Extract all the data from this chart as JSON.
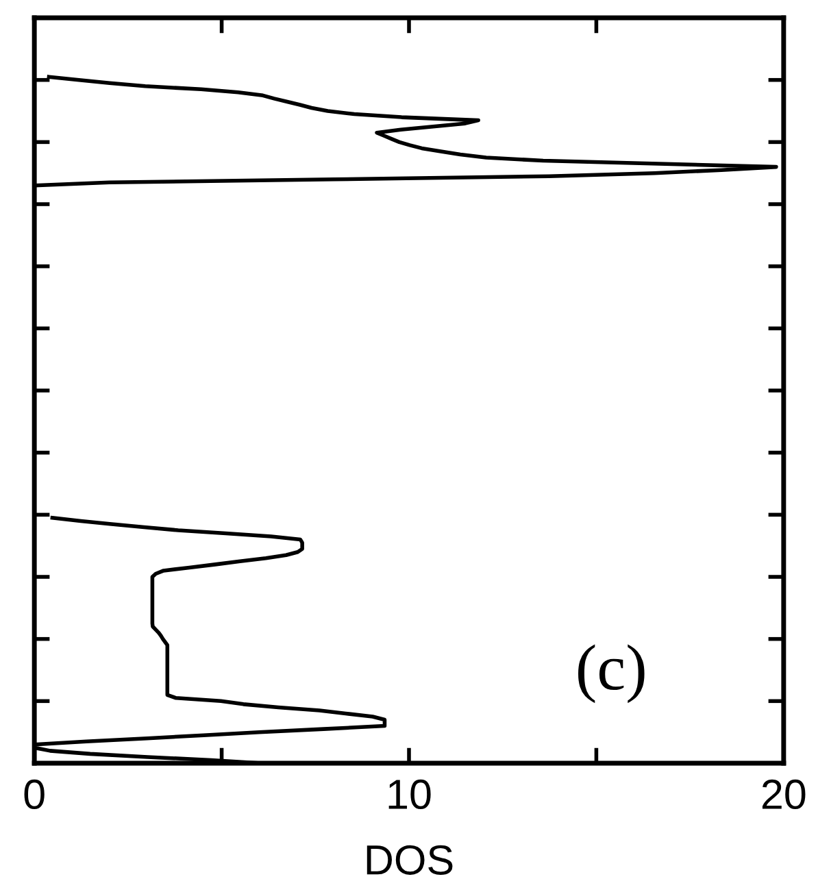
{
  "chart_data": {
    "type": "line",
    "orientation": "horizontal",
    "xlabel": "DOS",
    "categories": [
      null,
      null,
      null,
      null,
      null,
      null,
      null,
      null,
      null,
      null,
      null,
      null,
      null,
      null,
      null,
      null,
      null,
      null,
      null,
      null,
      null,
      null,
      null,
      null,
      null,
      null,
      null,
      null,
      null,
      null,
      null,
      null,
      null,
      null,
      null,
      null,
      null,
      null,
      null,
      null,
      null,
      null,
      null,
      null,
      null,
      null,
      null,
      null,
      null,
      null,
      null,
      null,
      null,
      null,
      null,
      null,
      null,
      null,
      null,
      null,
      null,
      null,
      null,
      null,
      null,
      null,
      null,
      null,
      null,
      null,
      null,
      null,
      null,
      null,
      null,
      null,
      null,
      null,
      null,
      null,
      null,
      null,
      null,
      null,
      null,
      null,
      null,
      null,
      null,
      null,
      null,
      null,
      null,
      null,
      null,
      null,
      null,
      null,
      null,
      null,
      null,
      null,
      null,
      null,
      null,
      null,
      null,
      null,
      null,
      null,
      null,
      null,
      null,
      null,
      null,
      null,
      null,
      null,
      null,
      null,
      null,
      null,
      null,
      null,
      null,
      null,
      null,
      null,
      null,
      null,
      null,
      null,
      null,
      null,
      null,
      null,
      null,
      null,
      null,
      null,
      null,
      null,
      null,
      null,
      null,
      null,
      null,
      null,
      null,
      null,
      null,
      null,
      null,
      null,
      null,
      null,
      null,
      null,
      null,
      null,
      null,
      null,
      null,
      null,
      null,
      null,
      null,
      null,
      null,
      null,
      null,
      null,
      null,
      null,
      null,
      null,
      null,
      null,
      null,
      null,
      null,
      null,
      null,
      null,
      null,
      null,
      null,
      null,
      null,
      null,
      null,
      null,
      null,
      null,
      null,
      null,
      null,
      null,
      null,
      null,
      null,
      null,
      null,
      null,
      null,
      null,
      null,
      null,
      null,
      null,
      null,
      null,
      null,
      null,
      null,
      null,
      null,
      null,
      null,
      null,
      null,
      null,
      null,
      null,
      null,
      null,
      null,
      null,
      null,
      null,
      null,
      null,
      null,
      null,
      null,
      null,
      null,
      null,
      null,
      null,
      null
    ],
    "series": [
      {
        "color": "#000000",
        "values": [
          null,
          null,
          null,
          null,
          null,
          null,
          null,
          null,
          null,
          null,
          null,
          null,
          null,
          null,
          null,
          null,
          null,
          null,
          null,
          0.39,
          1.19,
          2.01,
          2.96,
          4.45,
          5.44,
          6.1,
          6.4,
          6.75,
          7.09,
          7.4,
          7.83,
          8.54,
          9.8,
          11.85,
          11.5,
          10.64,
          9.78,
          9.14,
          9.34,
          9.54,
          9.74,
          10.02,
          10.34,
          10.85,
          11.37,
          12.06,
          13.58,
          16.67,
          19.8,
          18.34,
          16.55,
          13.74,
          8.0,
          2.0,
          0,
          null,
          null,
          null,
          null,
          null,
          null,
          null,
          null,
          null,
          null,
          null,
          null,
          null,
          null,
          null,
          null,
          null,
          null,
          null,
          null,
          null,
          null,
          null,
          null,
          null,
          null,
          null,
          null,
          null,
          null,
          null,
          null,
          null,
          null,
          null,
          null,
          null,
          null,
          null,
          null,
          null,
          null,
          null,
          null,
          null,
          null,
          null,
          null,
          null,
          null,
          null,
          null,
          null,
          null,
          null,
          null,
          null,
          null,
          null,
          null,
          null,
          null,
          null,
          null,
          null,
          null,
          null,
          null,
          null,
          null,
          null,
          null,
          null,
          null,
          null,
          null,
          null,
          null,
          null,
          null,
          null,
          null,
          null,
          null,
          null,
          null,
          null,
          null,
          null,
          null,
          null,
          null,
          null,
          null,
          null,
          null,
          null,
          null,
          null,
          null,
          null,
          null,
          null,
          null,
          null,
          null,
          0.48,
          1.24,
          2.06,
          2.93,
          3.84,
          5.11,
          6.32,
          7.1,
          7.15,
          7.15,
          7.15,
          7.03,
          6.72,
          6.18,
          5.49,
          4.83,
          4.14,
          3.45,
          3.24,
          3.15,
          3.15,
          3.15,
          3.15,
          3.15,
          3.15,
          3.15,
          3.15,
          3.15,
          3.15,
          3.15,
          3.15,
          3.15,
          3.15,
          3.15,
          3.15,
          3.16,
          3.24,
          3.32,
          3.38,
          3.43,
          3.49,
          3.55,
          3.55,
          3.55,
          3.55,
          3.55,
          3.55,
          3.55,
          3.55,
          3.55,
          3.55,
          3.55,
          3.55,
          3.55,
          3.55,
          3.55,
          3.55,
          3.55,
          3.78,
          4.98,
          5.58,
          6.51,
          7.61,
          8.31,
          9.03,
          9.35,
          9.35,
          9.35,
          7.72,
          6.0,
          4.52,
          3.01,
          1.39,
          0,
          0,
          0.42,
          1.49,
          3.02,
          4.72,
          6.07
        ]
      }
    ],
    "xlim": [
      0,
      20
    ],
    "xticks": [
      0,
      {
        "value": 5,
        "label": null
      },
      10,
      {
        "value": 15,
        "label": null
      },
      20
    ],
    "tick_labels": "x",
    "grid": false,
    "annotations": [
      "(c)"
    ]
  }
}
